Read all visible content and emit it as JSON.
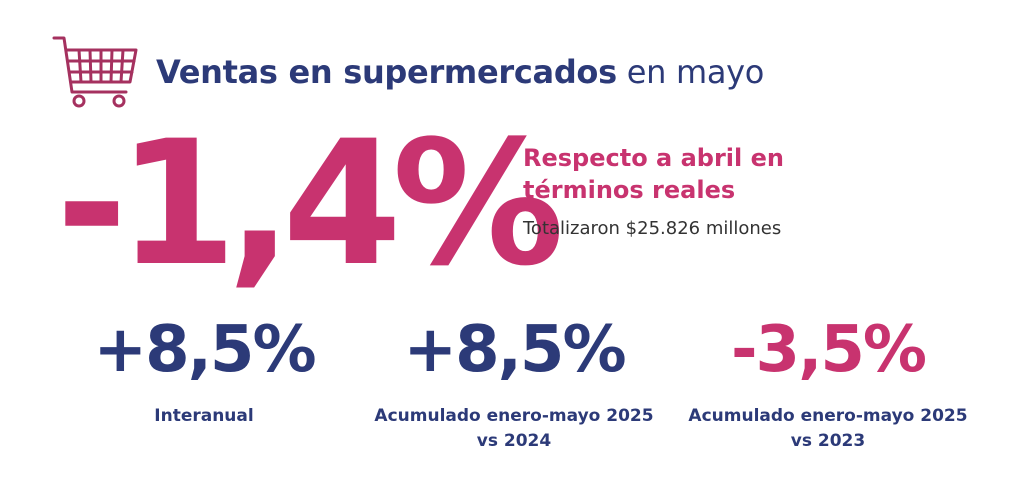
{
  "header": {
    "icon": "shopping-cart-icon",
    "title_bold": "Ventas en supermercados",
    "title_light": "en mayo"
  },
  "headline": {
    "value": "-1,4%",
    "title": "Respecto a abril en términos reales",
    "subtitle": "Totalizaron $25.826 millones"
  },
  "stats": [
    {
      "value": "+8,5%",
      "label": "Interanual",
      "color": "#2c3a78"
    },
    {
      "value": "+8,5%",
      "label": "Acumulado enero-mayo 2025 vs 2024",
      "color": "#2c3a78"
    },
    {
      "value": "-3,5%",
      "label": "Acumulado enero-mayo 2025 vs 2023",
      "color": "#c8336f"
    }
  ],
  "colors": {
    "navy": "#2c3a78",
    "pink": "#c8336f",
    "cart": "#a5315f"
  }
}
